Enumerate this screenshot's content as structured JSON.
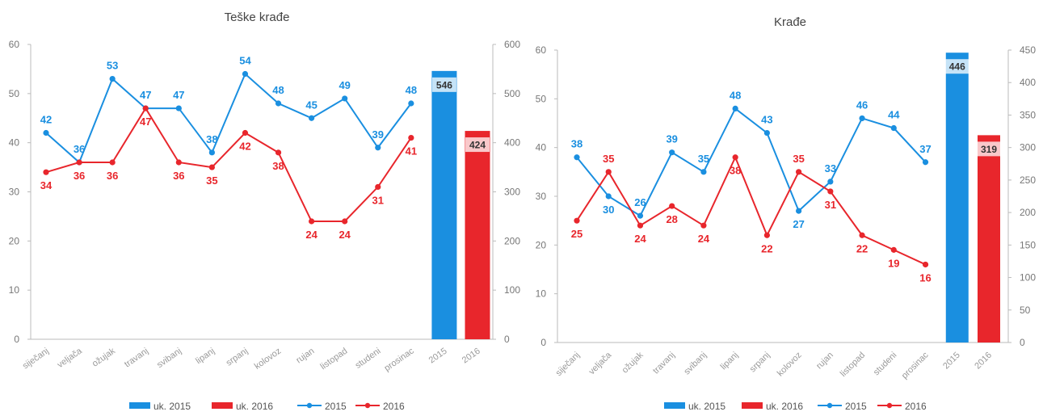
{
  "colors": {
    "s2015": "#1a8fe0",
    "s2016": "#e8262c",
    "axis": "#bbbbbb"
  },
  "chart_data": [
    {
      "type": "line",
      "title": "Teške krađe",
      "categories": [
        "siječanj",
        "veljača",
        "ožujak",
        "travanj",
        "svibanj",
        "lipanj",
        "srpanj",
        "kolovoz",
        "rujan",
        "listopad",
        "studeni",
        "prosinac"
      ],
      "bar_categories": [
        "2015",
        "2016"
      ],
      "ylim": [
        0,
        60
      ],
      "y2lim": [
        0,
        600
      ],
      "yticks": [
        "0",
        "10",
        "20",
        "30",
        "40",
        "50",
        "60"
      ],
      "y2ticks": [
        "0",
        "100",
        "200",
        "300",
        "400",
        "500",
        "600"
      ],
      "series": [
        {
          "name": "2015",
          "values": [
            42,
            36,
            53,
            47,
            47,
            38,
            54,
            48,
            45,
            49,
            39,
            48
          ],
          "labels": [
            "42",
            "36",
            "53",
            "47",
            "47",
            "38",
            "54",
            "48",
            "45",
            "49",
            "39",
            "48"
          ]
        },
        {
          "name": "2016",
          "values": [
            34,
            36,
            36,
            47,
            36,
            35,
            42,
            38,
            24,
            24,
            31,
            41
          ],
          "labels": [
            "34",
            "36",
            "36",
            "47",
            "36",
            "35",
            "42",
            "38",
            "24",
            "24",
            "31",
            "41"
          ]
        }
      ],
      "bars": [
        {
          "name": "uk. 2015",
          "value": 546,
          "label": "546"
        },
        {
          "name": "uk. 2016",
          "value": 424,
          "label": "424"
        }
      ],
      "legend": {
        "position": "bottom",
        "items": [
          "uk. 2015",
          "uk. 2016",
          "2015",
          "2016"
        ]
      }
    },
    {
      "type": "line",
      "title": "Krađe",
      "categories": [
        "siječanj",
        "veljača",
        "ožujak",
        "travanj",
        "svibanj",
        "lipanj",
        "srpanj",
        "kolovoz",
        "rujan",
        "listopad",
        "studeni",
        "prosinac"
      ],
      "bar_categories": [
        "2015",
        "2016"
      ],
      "ylim": [
        0,
        60
      ],
      "y2lim": [
        0,
        450
      ],
      "yticks": [
        "0",
        "10",
        "20",
        "30",
        "40",
        "50",
        "60"
      ],
      "y2ticks": [
        "0",
        "50",
        "100",
        "150",
        "200",
        "250",
        "300",
        "350",
        "400",
        "450"
      ],
      "series": [
        {
          "name": "2015",
          "values": [
            38,
            30,
            26,
            39,
            35,
            48,
            43,
            27,
            33,
            46,
            44,
            37
          ],
          "labels": [
            "38",
            "30",
            "26",
            "39",
            "35",
            "48",
            "43",
            "27",
            "33",
            "46",
            "44",
            "37"
          ]
        },
        {
          "name": "2016",
          "values": [
            25,
            35,
            24,
            28,
            24,
            38,
            22,
            35,
            31,
            22,
            19,
            16
          ],
          "labels": [
            "25",
            "35",
            "24",
            "28",
            "24",
            "38",
            "22",
            "35",
            "31",
            "22",
            "19",
            "16"
          ]
        }
      ],
      "bars": [
        {
          "name": "uk. 2015",
          "value": 446,
          "label": "446"
        },
        {
          "name": "uk. 2016",
          "value": 319,
          "label": "319"
        }
      ],
      "legend": {
        "position": "bottom",
        "items": [
          "uk. 2015",
          "uk. 2016",
          "2015",
          "2016"
        ]
      }
    }
  ]
}
